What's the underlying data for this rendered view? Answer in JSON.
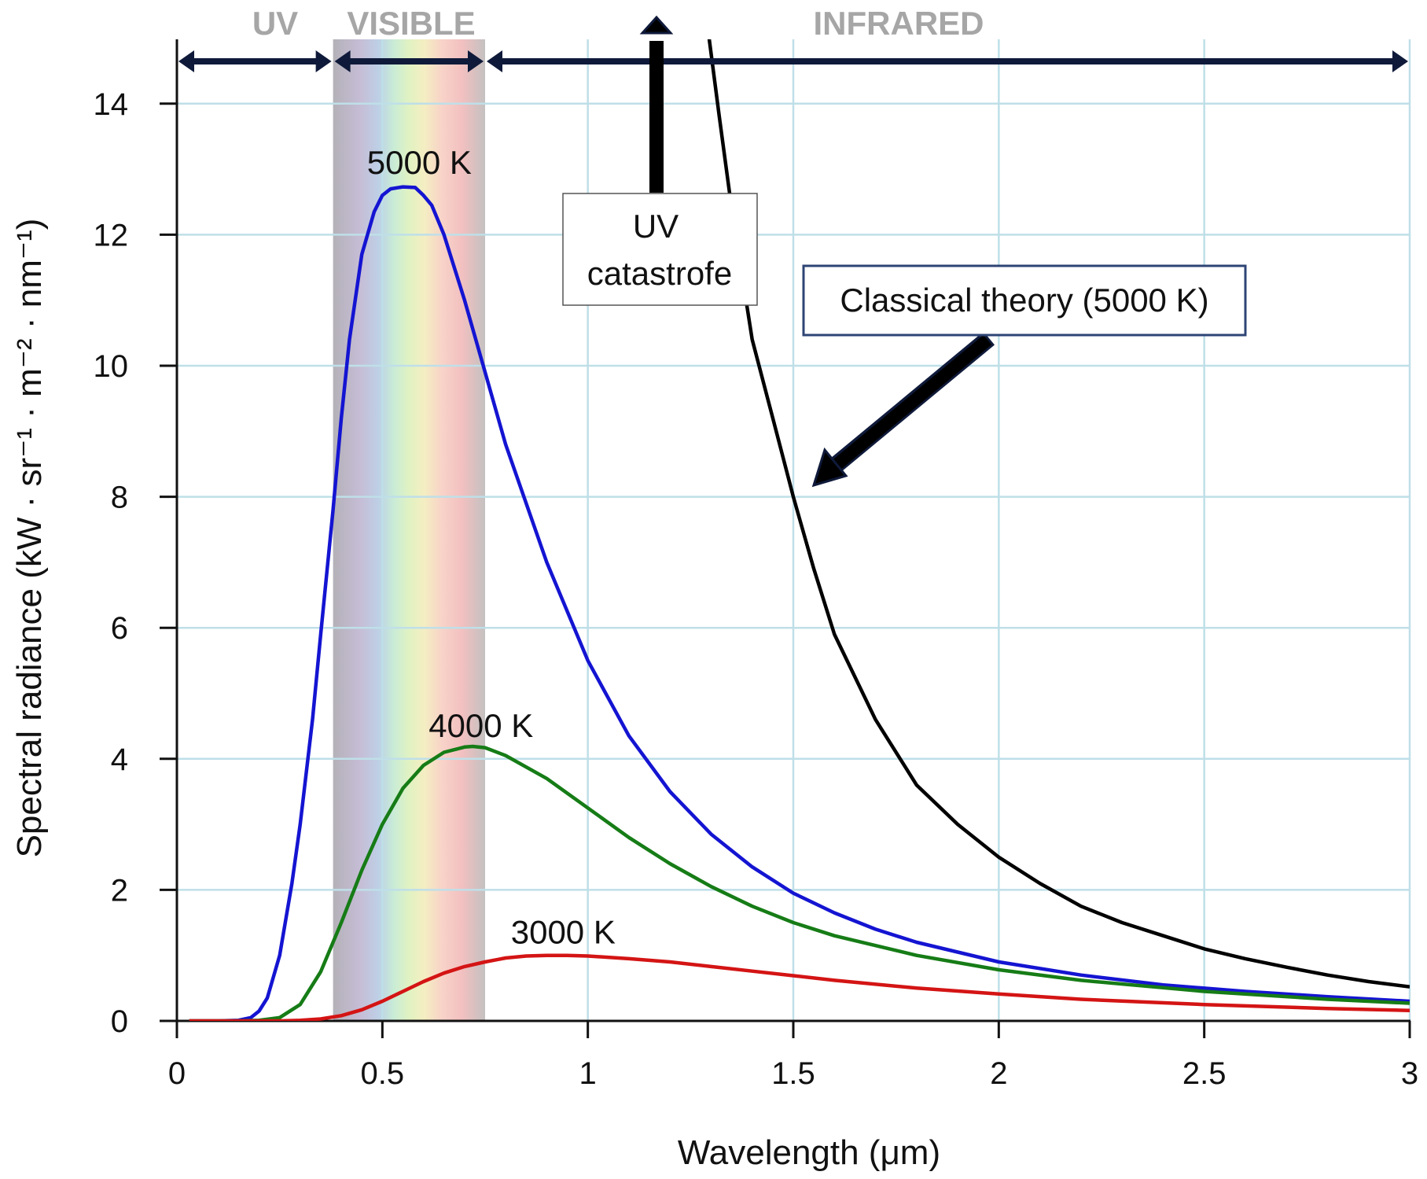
{
  "chart_data": {
    "type": "line",
    "title": "",
    "xlabel": "Wavelength (μm)",
    "ylabel": "Spectral radiance (kW · sr⁻¹ · m⁻² · nm⁻¹)",
    "xlim": [
      0,
      3
    ],
    "ylim": [
      0,
      15
    ],
    "xticks": [
      0,
      0.5,
      1,
      1.5,
      2,
      2.5,
      3
    ],
    "xtick_labels": [
      "0",
      "0.5",
      "1",
      "1.5",
      "2",
      "2.5",
      "3"
    ],
    "yticks": [
      0,
      2,
      4,
      6,
      8,
      10,
      12,
      14
    ],
    "ytick_labels": [
      "0",
      "2",
      "4",
      "6",
      "8",
      "10",
      "12",
      "14"
    ],
    "grid": true,
    "regions": [
      {
        "name": "UV",
        "x_range": [
          0,
          0.38
        ]
      },
      {
        "name": "VISIBLE",
        "x_range": [
          0.38,
          0.75
        ]
      },
      {
        "name": "INFRARED",
        "x_range": [
          0.75,
          3
        ]
      }
    ],
    "series": [
      {
        "name": "5000 K",
        "color": "#1414d2",
        "x": [
          0.03,
          0.1,
          0.15,
          0.18,
          0.2,
          0.22,
          0.25,
          0.28,
          0.3,
          0.33,
          0.35,
          0.38,
          0.4,
          0.42,
          0.45,
          0.48,
          0.5,
          0.52,
          0.55,
          0.58,
          0.6,
          0.62,
          0.65,
          0.7,
          0.75,
          0.8,
          0.9,
          1.0,
          1.1,
          1.2,
          1.3,
          1.4,
          1.5,
          1.6,
          1.7,
          1.8,
          2.0,
          2.2,
          2.4,
          2.6,
          2.8,
          3.0
        ],
        "y": [
          0,
          0,
          0.01,
          0.05,
          0.15,
          0.35,
          1.0,
          2.1,
          3.0,
          4.6,
          5.9,
          7.8,
          9.2,
          10.4,
          11.7,
          12.35,
          12.6,
          12.7,
          12.73,
          12.72,
          12.6,
          12.45,
          12.0,
          11.0,
          9.9,
          8.8,
          7.0,
          5.5,
          4.35,
          3.5,
          2.85,
          2.35,
          1.95,
          1.65,
          1.4,
          1.2,
          0.9,
          0.7,
          0.55,
          0.45,
          0.37,
          0.3
        ]
      },
      {
        "name": "4000 K",
        "color": "#167c16",
        "x": [
          0.03,
          0.15,
          0.2,
          0.25,
          0.3,
          0.35,
          0.4,
          0.45,
          0.5,
          0.55,
          0.6,
          0.65,
          0.7,
          0.72,
          0.75,
          0.8,
          0.9,
          1.0,
          1.1,
          1.2,
          1.3,
          1.4,
          1.5,
          1.6,
          1.8,
          2.0,
          2.2,
          2.5,
          2.8,
          3.0
        ],
        "y": [
          0,
          0,
          0.01,
          0.05,
          0.25,
          0.75,
          1.5,
          2.3,
          3.0,
          3.55,
          3.9,
          4.1,
          4.18,
          4.19,
          4.17,
          4.05,
          3.7,
          3.25,
          2.8,
          2.4,
          2.05,
          1.75,
          1.5,
          1.3,
          1.0,
          0.78,
          0.62,
          0.45,
          0.33,
          0.27
        ]
      },
      {
        "name": "3000 K",
        "color": "#d41414",
        "x": [
          0.03,
          0.2,
          0.25,
          0.3,
          0.35,
          0.4,
          0.45,
          0.5,
          0.55,
          0.6,
          0.65,
          0.7,
          0.75,
          0.8,
          0.85,
          0.9,
          0.95,
          1.0,
          1.1,
          1.2,
          1.3,
          1.4,
          1.5,
          1.6,
          1.8,
          2.0,
          2.2,
          2.5,
          2.8,
          3.0
        ],
        "y": [
          0,
          0,
          0,
          0.01,
          0.03,
          0.08,
          0.17,
          0.3,
          0.45,
          0.6,
          0.73,
          0.83,
          0.9,
          0.96,
          0.99,
          1.0,
          1.0,
          0.99,
          0.95,
          0.9,
          0.83,
          0.76,
          0.69,
          0.62,
          0.5,
          0.41,
          0.33,
          0.25,
          0.19,
          0.16
        ]
      },
      {
        "name": "Classical theory (5000 K)",
        "color": "#000000",
        "x": [
          1.295,
          1.32,
          1.35,
          1.4,
          1.45,
          1.5,
          1.55,
          1.6,
          1.7,
          1.8,
          1.9,
          2.0,
          2.1,
          2.2,
          2.3,
          2.4,
          2.5,
          2.6,
          2.7,
          2.8,
          2.9,
          3.0
        ],
        "y": [
          15.0,
          13.8,
          12.4,
          10.4,
          9.2,
          8.0,
          6.9,
          5.9,
          4.6,
          3.6,
          3.0,
          2.5,
          2.1,
          1.75,
          1.5,
          1.3,
          1.1,
          0.95,
          0.82,
          0.7,
          0.6,
          0.52
        ]
      }
    ],
    "curve_labels": [
      {
        "text": "5000 K",
        "x": 0.59,
        "y": 13.1
      },
      {
        "text": "4000 K",
        "x": 0.74,
        "y": 4.5
      },
      {
        "text": "3000 K",
        "x": 0.94,
        "y": 1.35
      }
    ],
    "annotations": [
      {
        "text_lines": [
          "UV",
          "catastrofe"
        ]
      },
      {
        "text": "Classical theory (5000 K)"
      }
    ]
  }
}
